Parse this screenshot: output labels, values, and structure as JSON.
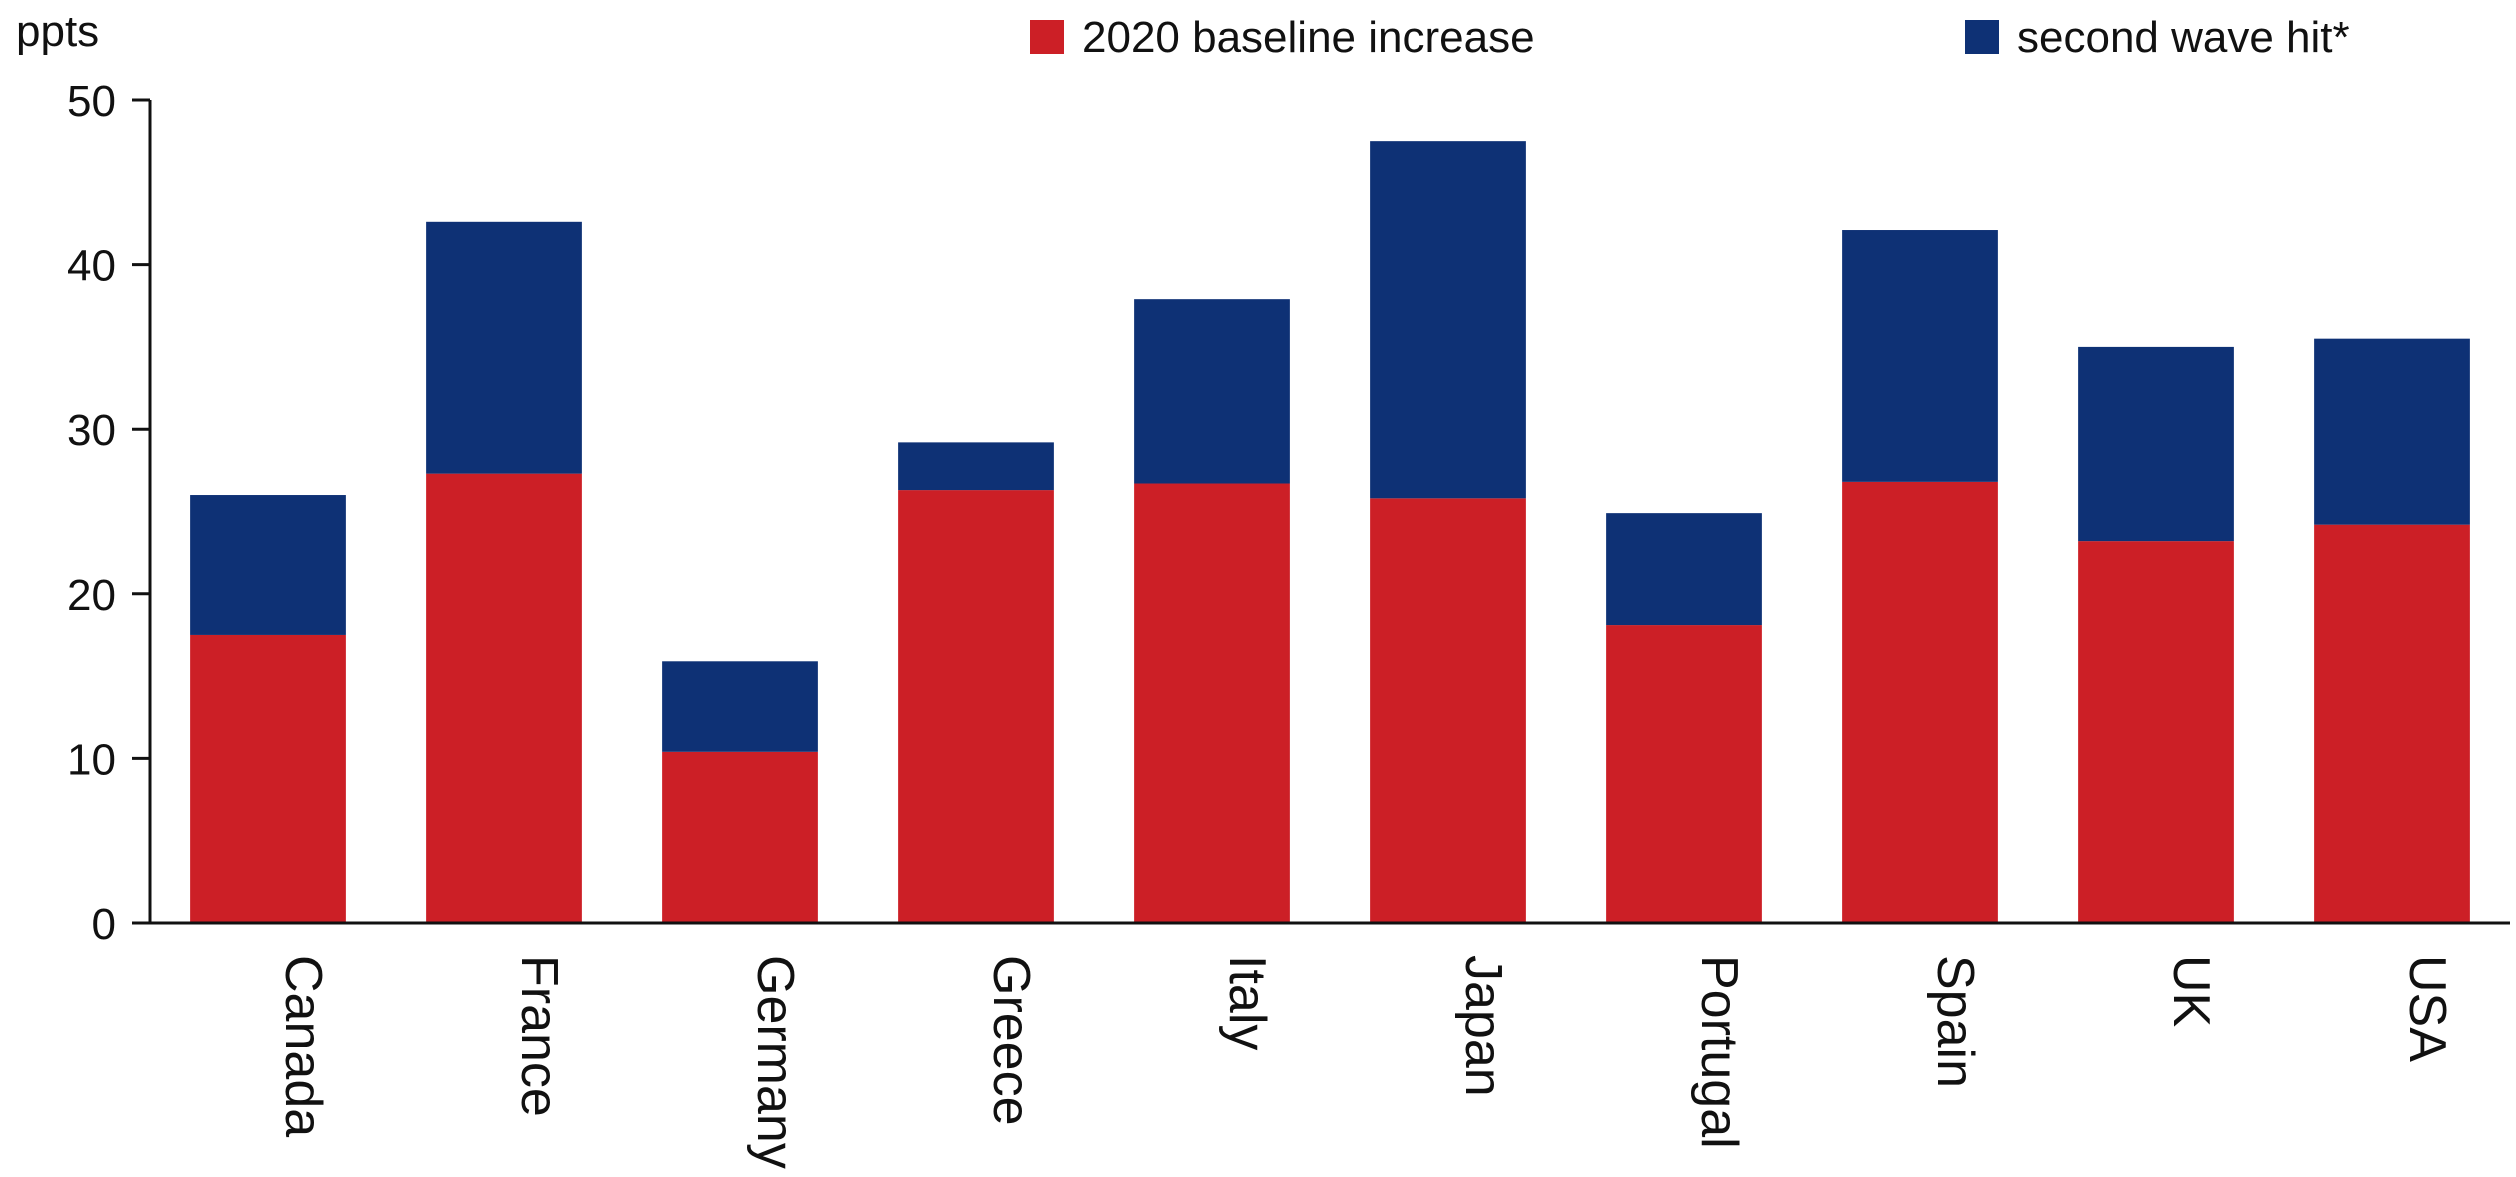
{
  "chart_data": {
    "type": "bar",
    "stacked": true,
    "unit_label": "ppts",
    "title": "",
    "xlabel": "",
    "ylabel": "",
    "ylim": [
      0,
      50
    ],
    "yticks": [
      0,
      10,
      20,
      30,
      40,
      50
    ],
    "grid": false,
    "legend_position": "top-right",
    "categories": [
      "Canada",
      "France",
      "Germany",
      "Greece",
      "Italy",
      "Japan",
      "Portugal",
      "Spain",
      "UK",
      "USA"
    ],
    "series": [
      {
        "name": "2020 baseline increase",
        "color": "#cc1f26",
        "values": [
          17.5,
          27.3,
          10.4,
          26.3,
          26.7,
          25.8,
          18.1,
          26.8,
          23.2,
          24.2
        ]
      },
      {
        "name": "second wave hit*",
        "color": "#0e3175",
        "values": [
          8.5,
          15.3,
          5.5,
          2.9,
          11.2,
          21.7,
          6.8,
          15.3,
          11.8,
          11.3
        ]
      }
    ]
  }
}
